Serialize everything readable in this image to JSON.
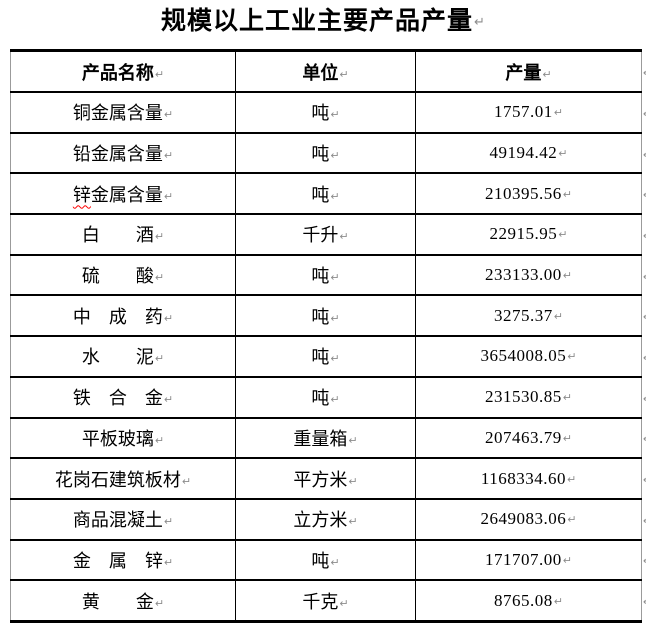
{
  "title": {
    "text": "规模以上工业主要产品产量"
  },
  "marks": {
    "cell_end": "↵",
    "row_end": "↵"
  },
  "colors": {
    "text": "#000000",
    "border_horizontal": "#000000",
    "border_vertical_outer": "#9b9b9b",
    "formatting_mark": "#8c8c8c",
    "spellcheck_underline": "#ff0000",
    "background": "#ffffff"
  },
  "table": {
    "columns": [
      {
        "label": "产品名称"
      },
      {
        "label": "单位"
      },
      {
        "label": "产量"
      }
    ],
    "rows": [
      {
        "name": "铜金属含量",
        "unit": "吨",
        "value": "1757.01"
      },
      {
        "name": "铅金属含量",
        "unit": "吨",
        "value": "49194.42"
      },
      {
        "name": "锌金属含量",
        "unit": "吨",
        "value": "210395.56",
        "spellcheck_wavy_chars": 1
      },
      {
        "name": "白　　酒",
        "unit": "千升",
        "value": "22915.95"
      },
      {
        "name": "硫　　酸",
        "unit": "吨",
        "value": "233133.00"
      },
      {
        "name": "中　成　药",
        "unit": "吨",
        "value": "3275.37"
      },
      {
        "name": "水　　泥",
        "unit": "吨",
        "value": "3654008.05"
      },
      {
        "name": "铁　合　金",
        "unit": "吨",
        "value": "231530.85"
      },
      {
        "name": "平板玻璃",
        "unit": "重量箱",
        "value": "207463.79"
      },
      {
        "name": "花岗石建筑板材",
        "unit": "平方米",
        "value": "1168334.60"
      },
      {
        "name": "商品混凝土",
        "unit": "立方米",
        "value": "2649083.06"
      },
      {
        "name": "金　属　锌",
        "unit": "吨",
        "value": "171707.00"
      },
      {
        "name": "黄　　金",
        "unit": "千克",
        "value": "8765.08"
      }
    ]
  }
}
